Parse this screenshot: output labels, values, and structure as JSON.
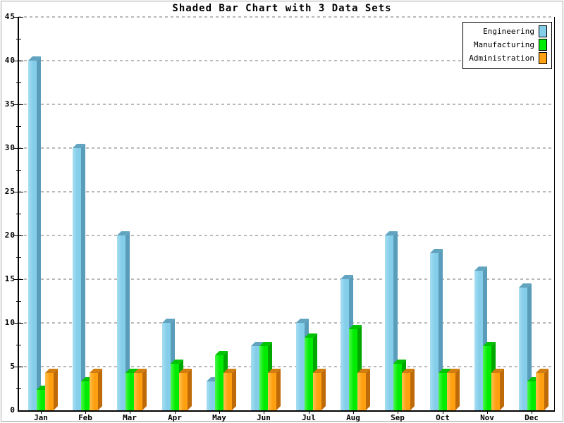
{
  "title": "Shaded Bar Chart with 3 Data Sets",
  "legend": {
    "position": "top-right",
    "items": [
      "Engineering",
      "Manufacturing",
      "Administration"
    ]
  },
  "chart_data": {
    "type": "bar",
    "title": "Shaded Bar Chart with 3 Data Sets",
    "categories": [
      "Jan",
      "Feb",
      "Mar",
      "Apr",
      "May",
      "Jun",
      "Jul",
      "Aug",
      "Sep",
      "Oct",
      "Nov",
      "Dec"
    ],
    "series": [
      {
        "name": "Engineering",
        "values": [
          40,
          30,
          20,
          10,
          3.3,
          7.3,
          10,
          15,
          20,
          18,
          16,
          14
        ],
        "front_color": "#85CEEA",
        "light_color": "#A6DEF2",
        "dark_color": "#5A9DBA",
        "top_color": "#62A4C0"
      },
      {
        "name": "Manufacturing",
        "values": [
          2.3,
          3.3,
          4.3,
          5.3,
          6.3,
          7.3,
          8.3,
          9.3,
          5.3,
          4.3,
          7.3,
          3.3
        ],
        "front_color": "#00EC00",
        "light_color": "#4DF74D",
        "dark_color": "#00A800",
        "top_color": "#00C400"
      },
      {
        "name": "Administration",
        "values": [
          4.3,
          4.3,
          4.3,
          4.3,
          4.3,
          4.3,
          4.3,
          4.3,
          4.3,
          4.3,
          4.3,
          4.3
        ],
        "front_color": "#FFA010",
        "light_color": "#FFC050",
        "dark_color": "#BF6A08",
        "top_color": "#D27D10"
      }
    ],
    "xlabel": "",
    "ylabel": "",
    "ylim": [
      0,
      45
    ],
    "ytick_step": 5,
    "yminor_step": 2.5,
    "grid": "horizontal-dashed",
    "grid_color": "#b9b9b9",
    "axis_color": "#000000",
    "background_color": "#ffffff",
    "legend_position": "top-right"
  }
}
